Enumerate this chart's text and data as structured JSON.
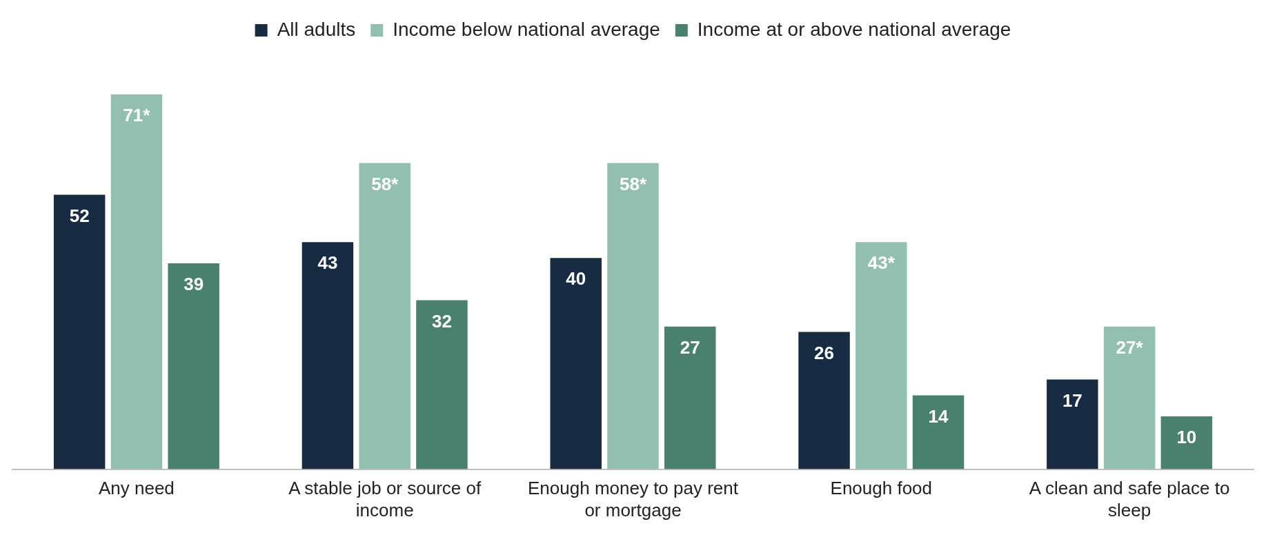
{
  "chart_data": {
    "type": "bar",
    "categories": [
      "Any need",
      "A stable job or source of income",
      "Enough money to pay rent or mortgage",
      "Enough food",
      "A clean and safe place to sleep"
    ],
    "series": [
      {
        "name": "All adults",
        "color": "#172b42",
        "values": [
          52,
          43,
          40,
          26,
          17
        ],
        "value_labels": [
          "52",
          "43",
          "40",
          "26",
          "17"
        ]
      },
      {
        "name": "Income below national average",
        "color": "#93bfb1",
        "values": [
          71,
          58,
          58,
          43,
          27
        ],
        "value_labels": [
          "71*",
          "58*",
          "58*",
          "43*",
          "27*"
        ]
      },
      {
        "name": "Income at or above national average",
        "color": "#4a806e",
        "values": [
          39,
          32,
          27,
          14,
          10
        ],
        "value_labels": [
          "39",
          "32",
          "27",
          "14",
          "10"
        ]
      }
    ],
    "legend": "top",
    "grid": false,
    "tick_labels": "x"
  }
}
